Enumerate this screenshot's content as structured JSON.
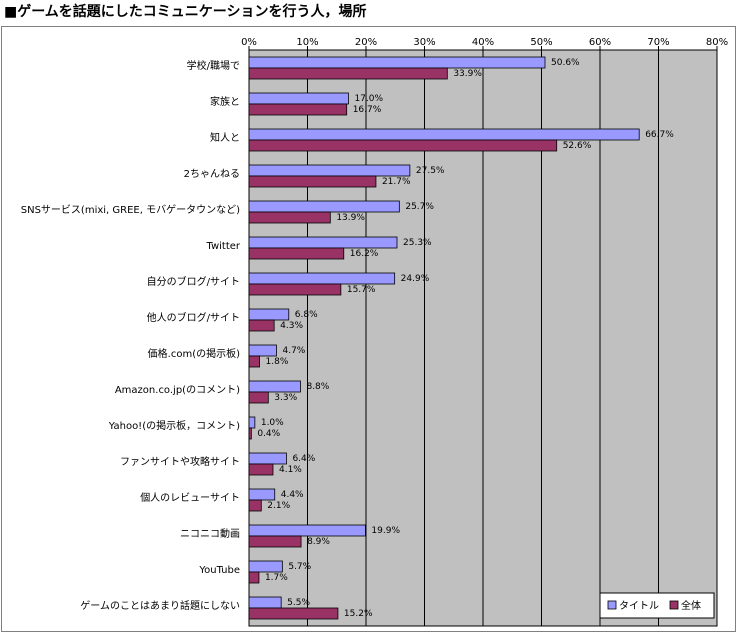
{
  "chart_data": {
    "type": "bar",
    "orientation": "horizontal",
    "title": "■ゲームを話題にしたコミュニケーションを行う人，場所",
    "categories": [
      "学校/職場で",
      "家族と",
      "知人と",
      "2ちゃんねる",
      "SNSサービス(mixi, GREE, モバゲータウンなど)",
      "Twitter",
      "自分のブログ/サイト",
      "他人のブログ/サイト",
      "価格.com(の掲示板)",
      "Amazon.co.jp(のコメント)",
      "Yahoo!(の掲示板，コメント)",
      "ファンサイトや攻略サイト",
      "個人のレビューサイト",
      "ニコニコ動画",
      "YouTube",
      "ゲームのことはあまり話題にしない"
    ],
    "series": [
      {
        "name": "タイトル",
        "color": "#9999ff",
        "values": [
          50.6,
          17.0,
          66.7,
          27.5,
          25.7,
          25.3,
          24.9,
          6.8,
          4.7,
          8.8,
          1.0,
          6.4,
          4.4,
          19.9,
          5.7,
          5.5
        ],
        "value_labels": [
          "50.6%",
          "17.0%",
          "66.7%",
          "27.5%",
          "25.7%",
          "25.3%",
          "24.9%",
          "6.8%",
          "4.7%",
          "8.8%",
          "1.0%",
          "6.4%",
          "4.4%",
          "19.9%",
          "5.7%",
          "5.5%"
        ]
      },
      {
        "name": "全体",
        "color": "#993366",
        "values": [
          33.9,
          16.7,
          52.6,
          21.7,
          13.9,
          16.2,
          15.7,
          4.3,
          1.8,
          3.3,
          0.4,
          4.1,
          2.1,
          8.9,
          1.7,
          15.2
        ],
        "value_labels": [
          "33.9%",
          "16.7%",
          "52.6%",
          "21.7%",
          "13.9%",
          "16.2%",
          "15.7%",
          "4.3%",
          "1.8%",
          "3.3%",
          "0.4%",
          "4.1%",
          "2.1%",
          "8.9%",
          "1.7%",
          "15.2%"
        ]
      }
    ],
    "xlim": [
      0,
      80
    ],
    "xticks": [
      {
        "value": 0,
        "label": "0%"
      },
      {
        "value": 10,
        "label": "10%"
      },
      {
        "value": 20,
        "label": "20%"
      },
      {
        "value": 30,
        "label": "30%"
      },
      {
        "value": 40,
        "label": "40%"
      },
      {
        "value": 50,
        "label": "50%"
      },
      {
        "value": 60,
        "label": "60%"
      },
      {
        "value": 70,
        "label": "70%"
      },
      {
        "value": 80,
        "label": "80%"
      }
    ],
    "grid": true,
    "legend": "bottom-right"
  }
}
